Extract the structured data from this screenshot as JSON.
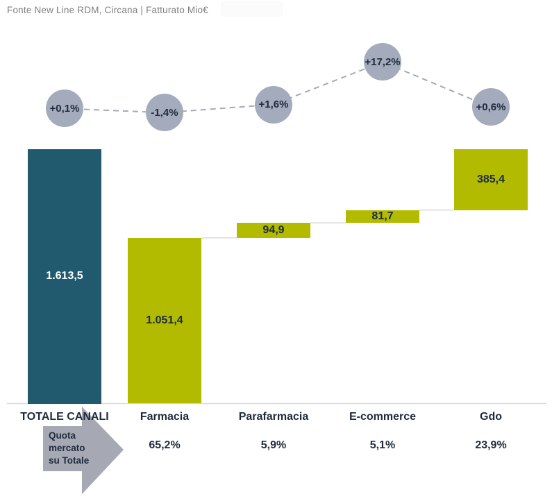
{
  "header": {
    "source_note": "Fonte New Line RDM, Circana | Fatturato Mio€"
  },
  "colors": {
    "total_bar": "#215a6e",
    "channel_bar": "#b2bb00",
    "bubble_fill": "#a3abbc",
    "dark_text": "#1f2b3d",
    "total_value_text": "#ffffff",
    "trend_dash": "#a3a9b5",
    "connector": "#d9d9d9",
    "baseline": "#d9d9d9",
    "arrow_fill": "#a6a9b4",
    "source_text": "#7f7f7f",
    "highlight_box": "#fbfbfb"
  },
  "chart_data": {
    "type": "waterfall",
    "title": "Fatturato Mio€",
    "categories": [
      "TOTALE CANALI",
      "Farmacia",
      "Parafarmacia",
      "E-commerce",
      "Gdo"
    ],
    "series": [
      {
        "name": "Fatturato Mio€",
        "role": "waterfall-bars",
        "values": [
          1613.5,
          1051.4,
          94.9,
          81.7,
          385.4
        ],
        "value_labels": [
          "1.613,5",
          "1.051,4",
          "94,9",
          "81,7",
          "385,4"
        ],
        "is_total": [
          true,
          false,
          false,
          false,
          false
        ]
      },
      {
        "name": "trend-percent",
        "role": "bubble-line",
        "values": [
          0.1,
          -1.4,
          1.6,
          17.2,
          0.6
        ],
        "value_labels": [
          "+0,1%",
          "-1,4%",
          "+1,6%",
          "+17,2%",
          "+0,6%"
        ]
      },
      {
        "name": "Quota mercato su Totale",
        "role": "share-of-total-row",
        "values": [
          null,
          65.2,
          5.9,
          5.1,
          23.9
        ],
        "value_labels": [
          "",
          "65,2%",
          "5,9%",
          "5,1%",
          "23,9%"
        ]
      }
    ],
    "ylim": [
      0,
      1613.5
    ],
    "grid": false,
    "legend": false
  },
  "footer": {
    "arrow_label": "Quota mercato su Totale"
  }
}
